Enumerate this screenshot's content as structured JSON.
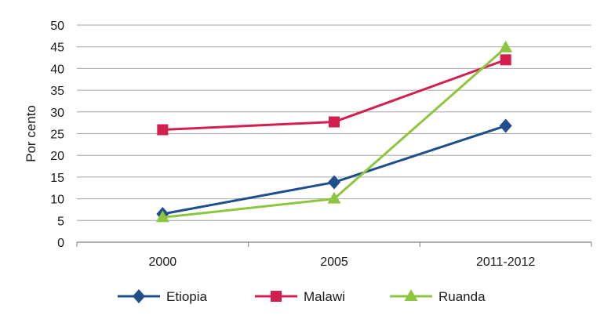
{
  "chart_data": {
    "type": "line",
    "title": "",
    "xlabel": "",
    "ylabel": "Por cento",
    "categories": [
      "2000",
      "2005",
      "2011-2012"
    ],
    "ylim": [
      0,
      50
    ],
    "yticks": [
      0,
      5,
      10,
      15,
      20,
      25,
      30,
      35,
      40,
      45,
      50
    ],
    "grid": true,
    "legend_position": "bottom",
    "series": [
      {
        "name": "Etiopia",
        "values": [
          6.5,
          13.8,
          26.8
        ],
        "color": "#1f4e8c",
        "marker": "diamond"
      },
      {
        "name": "Malawi",
        "values": [
          25.9,
          27.7,
          42.0
        ],
        "color": "#d21f4e",
        "marker": "square"
      },
      {
        "name": "Ruanda",
        "values": [
          5.7,
          10.0,
          44.8
        ],
        "color": "#8cc63f",
        "marker": "triangle"
      }
    ]
  }
}
